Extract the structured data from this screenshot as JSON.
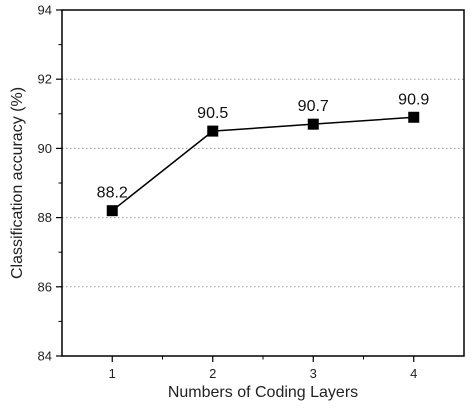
{
  "chart_data": {
    "type": "line",
    "title": "",
    "xlabel": "Numbers of Coding Layers",
    "ylabel": "Classification accuracy (%)",
    "x": [
      1,
      2,
      3,
      4
    ],
    "x_tick_labels": [
      "1",
      "2",
      "3",
      "4"
    ],
    "xlim": [
      0.5,
      4.5
    ],
    "ylim": [
      84,
      94
    ],
    "y_ticks": [
      84,
      86,
      88,
      90,
      92,
      94
    ],
    "y_tick_labels": [
      "84",
      "86",
      "88",
      "90",
      "92",
      "94"
    ],
    "series": [
      {
        "values": [
          88.2,
          90.5,
          90.7,
          90.9
        ],
        "marker": "square",
        "color": "#000000"
      }
    ],
    "data_labels": [
      "88.2",
      "90.5",
      "90.7",
      "90.9"
    ],
    "grid": {
      "horizontal": true,
      "style": "dotted",
      "color": "#9a9a9a"
    },
    "legend": "none"
  }
}
